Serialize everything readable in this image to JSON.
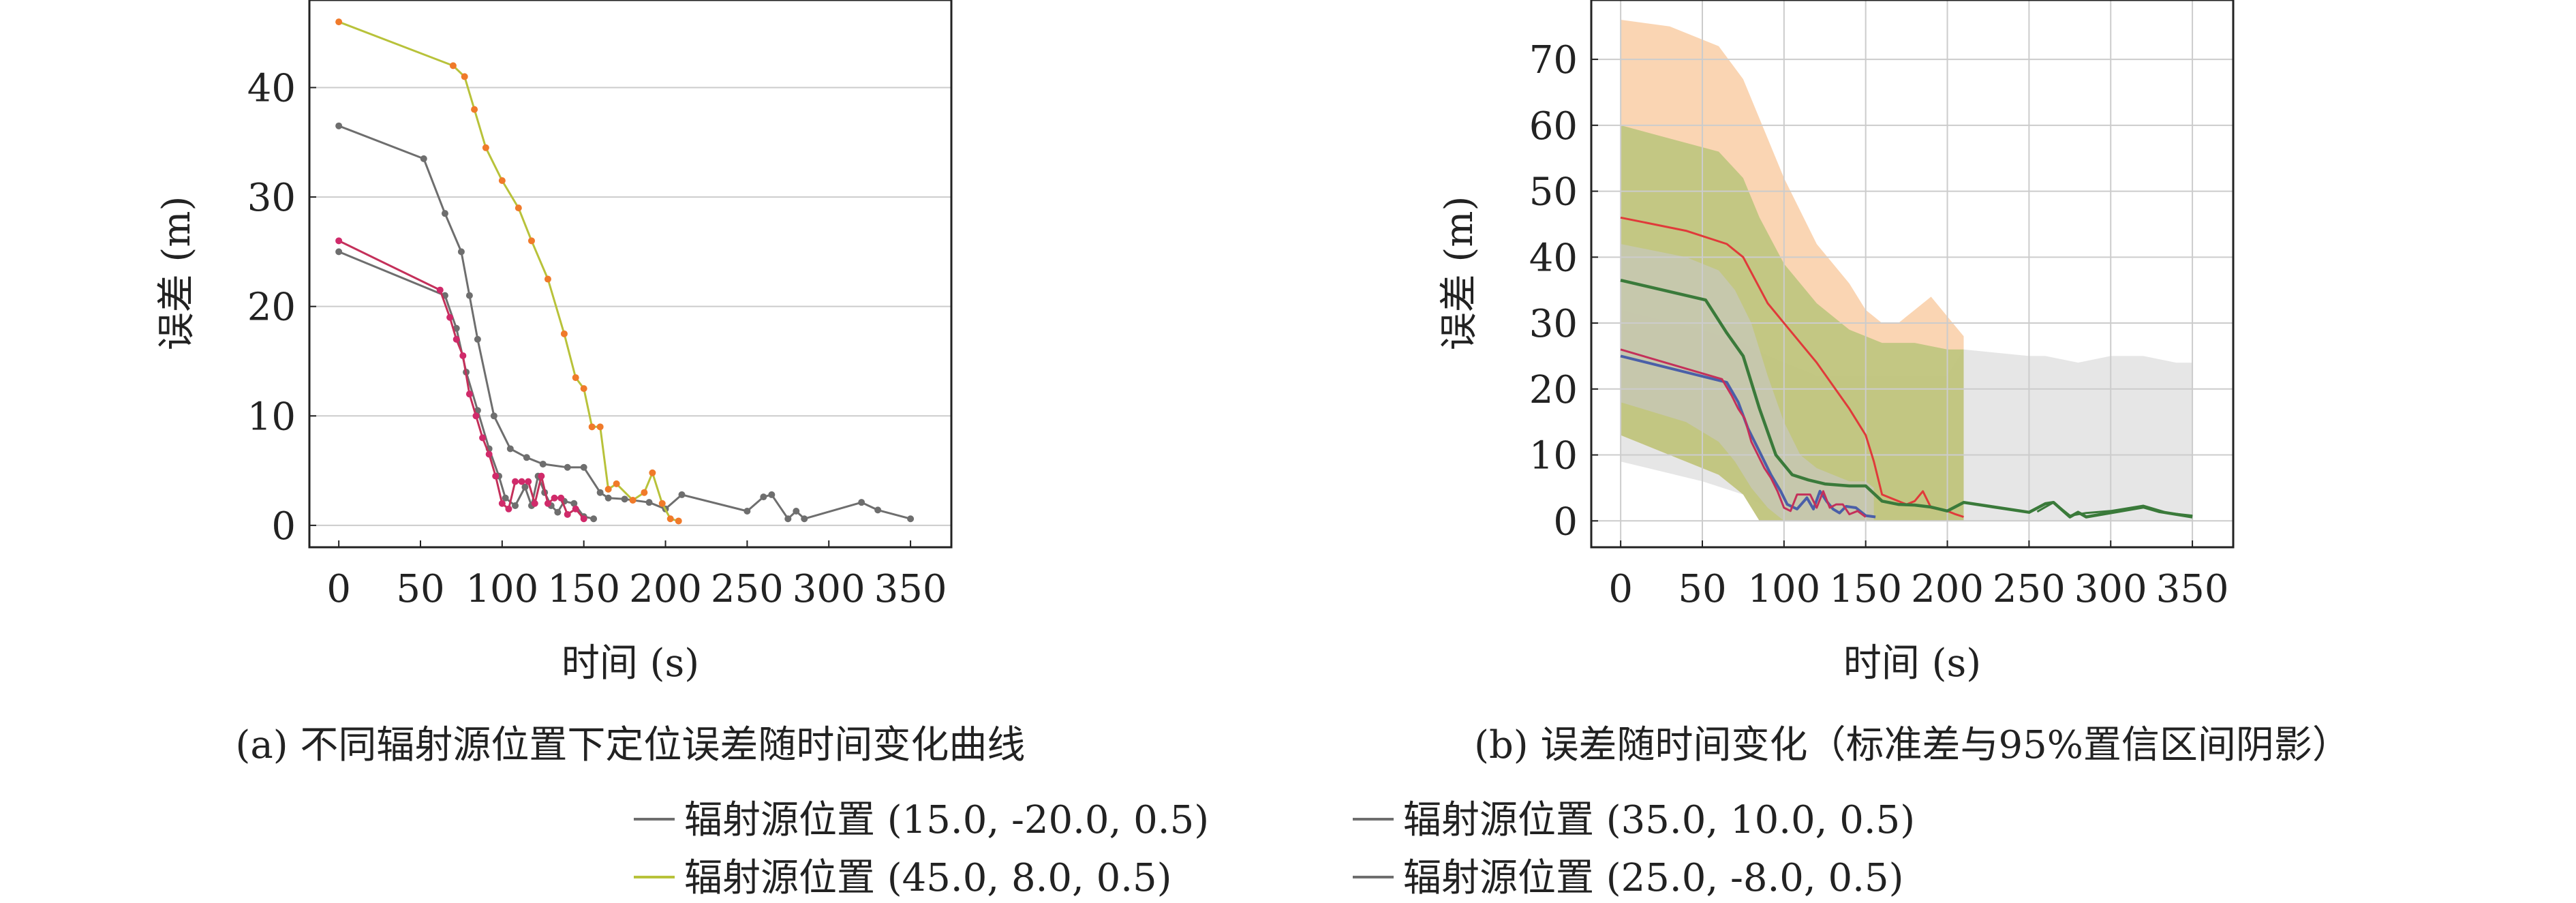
{
  "colors": {
    "series_gray": "#6e6e6e",
    "series_yellow": "#b8c23a",
    "series_red": "#e03a3a",
    "series_red_line": "#c4305a",
    "series_blue": "#4a5fa8",
    "series_green": "#3a7a3a",
    "marker_orange": "#f07a2a",
    "marker_pink": "#d02a6a",
    "band_orange": "#f8c79a",
    "band_olive": "#b9c47a",
    "band_gray": "#c8c8c8",
    "grid": "#cccccc",
    "axis": "#222222"
  },
  "chart_data": [
    {
      "type": "line",
      "caption": "(a) 不同辐射源位置下定位误差随时间变化曲线",
      "xlabel": "时间 (s)",
      "ylabel": "误差 (m)",
      "xlim": [
        -18,
        375
      ],
      "ylim": [
        -2,
        48
      ],
      "xticks": [
        0,
        50,
        100,
        150,
        200,
        250,
        300,
        350
      ],
      "yticks": [
        0,
        10,
        20,
        30,
        40
      ],
      "xtick_labels": [
        "0",
        "50",
        "100",
        "150",
        "200",
        "250",
        "300",
        "350"
      ],
      "ytick_labels": [
        "0",
        "10",
        "20",
        "30",
        "40"
      ],
      "grid": "horizontal",
      "series": [
        {
          "name": "辐射源位置 (15.0, -20.0, 0.5)",
          "color": "series_gray",
          "marker": "series_gray",
          "x": [
            0,
            52,
            65,
            75,
            80,
            85,
            95,
            105,
            115,
            125,
            140,
            150,
            160,
            165,
            175,
            190,
            200,
            210,
            250,
            260,
            265,
            275,
            280,
            285,
            320,
            330,
            350
          ],
          "y": [
            36.5,
            33.5,
            28.5,
            25.0,
            21.0,
            17.0,
            10.0,
            7.0,
            6.2,
            5.6,
            5.3,
            5.3,
            3.0,
            2.5,
            2.4,
            2.1,
            1.5,
            2.8,
            1.3,
            2.6,
            2.8,
            0.6,
            1.3,
            0.6,
            2.1,
            1.4,
            0.6
          ]
        },
        {
          "name": "辐射源位置 (35.0, 10.0, 0.5)",
          "color": "series_gray",
          "marker": "series_gray",
          "x": [
            0,
            65,
            72,
            78,
            85,
            92,
            98,
            102,
            108,
            114,
            118,
            122,
            126,
            130,
            134,
            138,
            144,
            150,
            156
          ],
          "y": [
            25.0,
            21.0,
            18.0,
            14.0,
            10.5,
            7.0,
            4.5,
            2.5,
            1.8,
            3.5,
            1.8,
            4.5,
            3.0,
            1.8,
            1.2,
            2.2,
            2.0,
            0.8,
            0.6
          ]
        },
        {
          "name": "辐射源位置 (45.0, 8.0, 0.5)",
          "color": "series_yellow",
          "marker": "marker_orange",
          "x": [
            0,
            70,
            77,
            83,
            90,
            100,
            110,
            118,
            128,
            138,
            145,
            150,
            155,
            160,
            165,
            170,
            180,
            187,
            192,
            198,
            203,
            208
          ],
          "y": [
            46.0,
            42.0,
            41.0,
            38.0,
            34.5,
            31.5,
            29.0,
            26.0,
            22.5,
            17.5,
            13.5,
            12.5,
            9.0,
            9.0,
            3.3,
            3.8,
            2.3,
            3.0,
            4.8,
            2.0,
            0.6,
            0.4
          ]
        },
        {
          "name": "辐射源位置 (25.0, -8.0, 0.5)",
          "color": "series_red_line",
          "marker": "marker_pink",
          "x": [
            0,
            62,
            68,
            72,
            76,
            80,
            84,
            88,
            92,
            96,
            100,
            104,
            108,
            112,
            116,
            120,
            124,
            128,
            132,
            136,
            140,
            145,
            150
          ],
          "y": [
            26.0,
            21.5,
            19.0,
            17.0,
            15.5,
            12.0,
            10.0,
            8.0,
            6.5,
            4.5,
            2.0,
            1.5,
            4.0,
            4.0,
            4.0,
            2.0,
            4.5,
            2.0,
            2.5,
            2.5,
            1.0,
            1.5,
            0.6
          ]
        }
      ]
    },
    {
      "type": "area",
      "caption": "(b) 误差随时间变化（标准差与95%置信区间阴影）",
      "xlabel": "时间 (s)",
      "ylabel": "误差 (m)",
      "xlim": [
        -18,
        375
      ],
      "ylim": [
        -4,
        79
      ],
      "xticks": [
        0,
        50,
        100,
        150,
        200,
        250,
        300,
        350
      ],
      "yticks": [
        0,
        10,
        20,
        30,
        40,
        50,
        60,
        70
      ],
      "xtick_labels": [
        "0",
        "50",
        "100",
        "150",
        "200",
        "250",
        "300",
        "350"
      ],
      "ytick_labels": [
        "0",
        "10",
        "20",
        "30",
        "40",
        "50",
        "60",
        "70"
      ],
      "grid": "both",
      "bands": [
        {
          "color": "band_gray",
          "opacity": 0.45,
          "x": [
            0,
            50,
            75,
            90,
            100,
            110,
            120,
            130,
            140,
            150,
            160,
            200,
            210,
            250,
            260,
            280,
            300,
            320,
            340,
            350
          ],
          "upper": [
            32,
            29,
            27,
            25,
            24,
            23,
            22,
            22,
            22,
            22,
            22,
            22,
            26,
            25,
            25,
            24,
            25,
            25,
            24,
            24
          ],
          "lower": [
            9,
            6,
            4,
            2,
            0,
            0,
            0,
            0,
            0,
            0,
            0,
            0,
            0,
            0,
            0,
            0,
            0,
            0,
            0,
            0
          ]
        },
        {
          "color": "band_orange",
          "opacity": 0.75,
          "x": [
            0,
            30,
            60,
            75,
            85,
            100,
            120,
            140,
            150,
            160,
            170,
            180,
            190,
            200,
            210
          ],
          "upper": [
            76,
            75,
            72,
            67,
            61,
            52,
            42,
            36,
            32,
            30,
            30,
            32,
            34,
            31,
            28
          ],
          "lower": [
            13,
            10,
            7,
            4,
            0,
            0,
            0,
            0,
            0,
            0,
            0,
            0,
            0,
            0,
            0
          ]
        },
        {
          "color": "band_olive",
          "opacity": 0.85,
          "x": [
            0,
            30,
            60,
            75,
            85,
            100,
            120,
            140,
            150,
            160,
            180,
            200,
            210
          ],
          "upper": [
            60,
            58,
            56,
            52,
            46,
            39,
            33,
            29,
            28,
            27,
            27,
            26,
            26
          ],
          "lower": [
            13,
            10,
            7,
            4,
            0,
            0,
            0,
            0,
            0,
            0,
            0,
            0,
            0
          ]
        },
        {
          "color": "band_gray",
          "opacity": 0.6,
          "x": [
            0,
            40,
            60,
            70,
            80,
            90,
            100,
            110,
            120,
            130,
            140,
            150,
            155
          ],
          "upper": [
            42,
            40,
            38,
            35,
            30,
            22,
            15,
            10,
            8,
            7,
            6,
            6,
            5
          ],
          "lower": [
            18,
            15,
            12,
            9,
            5,
            2,
            0,
            0,
            0,
            0,
            0,
            0,
            0
          ]
        }
      ],
      "series": [
        {
          "color": "series_red",
          "width": 3,
          "x": [
            0,
            40,
            65,
            75,
            90,
            100,
            110,
            120,
            140,
            150,
            155,
            160,
            170,
            175,
            180,
            185,
            190,
            200,
            205,
            210
          ],
          "y": [
            46,
            44,
            42,
            40,
            33,
            30,
            27,
            24,
            17,
            13,
            9,
            4,
            3,
            2.5,
            3,
            4.5,
            2,
            1.5,
            1,
            0.6
          ]
        },
        {
          "color": "series_green",
          "width": 4.5,
          "x": [
            0,
            52,
            65,
            75,
            80,
            85,
            95,
            105,
            115,
            125,
            140,
            150,
            160,
            170,
            180,
            190,
            200,
            210,
            250,
            260,
            265,
            275,
            280,
            285,
            320,
            330,
            350
          ],
          "y": [
            36.5,
            33.5,
            28.5,
            25,
            21,
            17,
            10,
            7,
            6.2,
            5.6,
            5.3,
            5.3,
            3,
            2.5,
            2.4,
            2.1,
            1.5,
            2.8,
            1.3,
            2.6,
            2.8,
            0.6,
            1.3,
            0.6,
            2.1,
            1.4,
            0.6
          ]
        },
        {
          "color": "series_blue",
          "width": 4,
          "x": [
            0,
            65,
            72,
            78,
            85,
            92,
            98,
            102,
            108,
            114,
            118,
            122,
            126,
            130,
            134,
            138,
            144,
            150,
            156
          ],
          "y": [
            25,
            21,
            18,
            14,
            10.5,
            7,
            4.5,
            2.5,
            1.8,
            3.5,
            1.8,
            4.5,
            3,
            1.8,
            1.2,
            2.2,
            2,
            0.8,
            0.6
          ]
        },
        {
          "color": "series_red_line",
          "width": 3,
          "x": [
            0,
            62,
            68,
            72,
            76,
            80,
            84,
            88,
            92,
            96,
            100,
            104,
            108,
            112,
            116,
            120,
            124,
            128,
            132,
            136,
            140,
            145,
            150
          ],
          "y": [
            26,
            21.5,
            19,
            17,
            15.5,
            12,
            10,
            8,
            6.5,
            4.5,
            2,
            1.5,
            4,
            4,
            4,
            2,
            4.5,
            2,
            2.5,
            2.5,
            1,
            1.5,
            0.6
          ]
        },
        {
          "color": "series_green",
          "width": 3,
          "x": [
            255,
            265,
            275,
            285,
            300,
            320,
            335,
            350
          ],
          "y": [
            1.4,
            2.8,
            0.8,
            1.2,
            1.5,
            2.3,
            1.2,
            0.8
          ]
        }
      ]
    }
  ],
  "legend": [
    {
      "label": "辐射源位置 (15.0, -20.0, 0.5)",
      "color": "series_gray"
    },
    {
      "label": "辐射源位置 (35.0, 10.0, 0.5)",
      "color": "series_gray"
    },
    {
      "label": "辐射源位置 (45.0, 8.0, 0.5)",
      "color": "series_yellow"
    },
    {
      "label": "辐射源位置 (25.0, -8.0, 0.5)",
      "color": "series_gray"
    }
  ]
}
